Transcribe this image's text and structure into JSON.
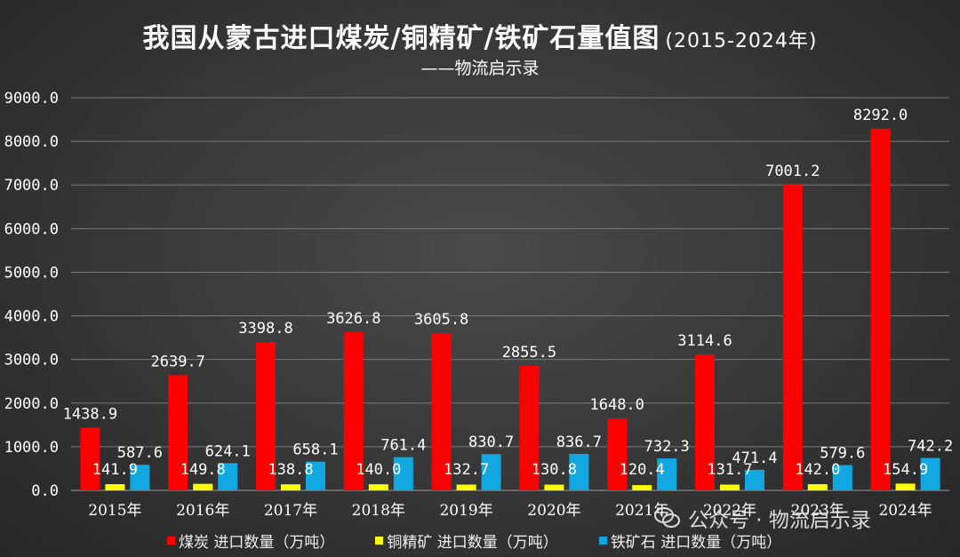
{
  "title": "我国从蒙古进口煤炭/铜精矿/铁矿石量值图",
  "title_period": "(2015-2024年)",
  "subtitle": "——物流启示录",
  "watermark": "公众号 · 物流启示录",
  "chart_data": {
    "type": "bar",
    "categories": [
      "2015年",
      "2016年",
      "2017年",
      "2018年",
      "2019年",
      "2020年",
      "2021年",
      "2022年",
      "2023年",
      "2024年"
    ],
    "series": [
      {
        "name": "煤炭 进口数量（万吨）",
        "color": "#ff0000",
        "values": [
          1438.9,
          2639.7,
          3398.8,
          3626.8,
          3605.8,
          2855.5,
          1648.0,
          3114.6,
          7001.2,
          8292.0
        ]
      },
      {
        "name": "铜精矿 进口数量（万吨）",
        "color": "#ffff00",
        "values": [
          141.9,
          149.8,
          138.8,
          140.0,
          132.7,
          130.8,
          120.4,
          131.7,
          142.0,
          154.9
        ]
      },
      {
        "name": "铁矿石 进口数量（万吨）",
        "color": "#11a7e0",
        "values": [
          587.6,
          624.1,
          658.1,
          761.4,
          830.7,
          836.7,
          732.3,
          471.4,
          579.6,
          742.2
        ]
      }
    ],
    "yticks": [
      "0.0",
      "1000.0",
      "2000.0",
      "3000.0",
      "4000.0",
      "5000.0",
      "6000.0",
      "7000.0",
      "8000.0",
      "9000.0"
    ],
    "ylim": [
      0,
      9000
    ],
    "grid": true,
    "legend": "bottom"
  }
}
